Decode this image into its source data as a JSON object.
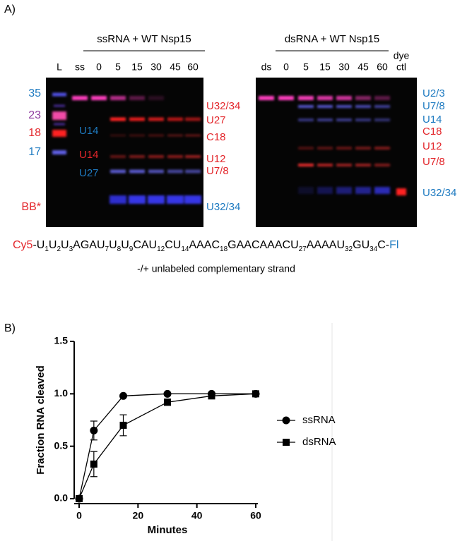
{
  "panel_a": {
    "label": "A)",
    "left_gel": {
      "title": "ssRNA + WT Nsp15",
      "lanes": [
        "L",
        "ss",
        "0",
        "5",
        "15",
        "30",
        "45",
        "60"
      ],
      "markers": [
        "35",
        "23",
        "18",
        "17",
        "BB*"
      ],
      "inner_labels": [
        "U14",
        "U14",
        "U27"
      ],
      "right_labels": [
        "U32/34",
        "U27",
        "C18",
        "U12",
        "U7/8",
        "U32/34"
      ]
    },
    "right_gel": {
      "title": "dsRNA + WT Nsp15",
      "lanes": [
        "ds",
        "0",
        "5",
        "15",
        "30",
        "45",
        "60"
      ],
      "dye_lane": [
        "dye",
        "ctl"
      ],
      "right_labels": [
        "U2/3",
        "U7/8",
        "U14",
        "C18",
        "U12",
        "U7/8",
        "U32/34"
      ]
    },
    "sequence": [
      {
        "text": "Cy5"
      },
      {
        "text": "-U",
        "sub": "1"
      },
      {
        "text": "U",
        "sub": "2"
      },
      {
        "text": "U",
        "sub": "3"
      },
      {
        "text": "AGAU",
        "sub": "7"
      },
      {
        "text": "U",
        "sub": "8"
      },
      {
        "text": "U",
        "sub": "9"
      },
      {
        "text": "CAU",
        "sub": "12"
      },
      {
        "text": "CU",
        "sub": "14"
      },
      {
        "text": "AAAC",
        "sub": "18"
      },
      {
        "text": "GAACAAACU",
        "sub": "27"
      },
      {
        "text": "AAAAU",
        "sub": "32"
      },
      {
        "text": "GU",
        "sub": "34"
      },
      {
        "text": "C-"
      },
      {
        "text": "Fl"
      }
    ],
    "caption": "-/+  unlabeled complementary strand"
  },
  "chart_data": {
    "type": "line",
    "panel_label": "B)",
    "x_label": "Minutes",
    "y_label": "Fraction RNA cleaved",
    "x": [
      0,
      5,
      15,
      30,
      45,
      60
    ],
    "series": [
      {
        "name": "ssRNA",
        "color": "#000000",
        "marker": "circle",
        "values": [
          0,
          0.65,
          0.98,
          1.0,
          1.0,
          1.0
        ],
        "errors": [
          0,
          0.09,
          0,
          0,
          0,
          0
        ]
      },
      {
        "name": "dsRNA",
        "color": "#000000",
        "marker": "square",
        "values": [
          0,
          0.33,
          0.7,
          0.92,
          0.98,
          1.0
        ],
        "errors": [
          0,
          0.12,
          0.1,
          0.03,
          0,
          0
        ]
      }
    ],
    "xlim": [
      0,
      60
    ],
    "ylim": [
      0,
      1.5
    ],
    "xticks": [
      0,
      20,
      40,
      60
    ],
    "yticks": [
      {
        "value": 0,
        "label": "0.0"
      },
      {
        "value": 0.5,
        "label": "0.5"
      },
      {
        "value": 1,
        "label": "1.0"
      },
      {
        "value": 1.5,
        "label": "1.5"
      }
    ],
    "legend": "right",
    "grid": false
  }
}
